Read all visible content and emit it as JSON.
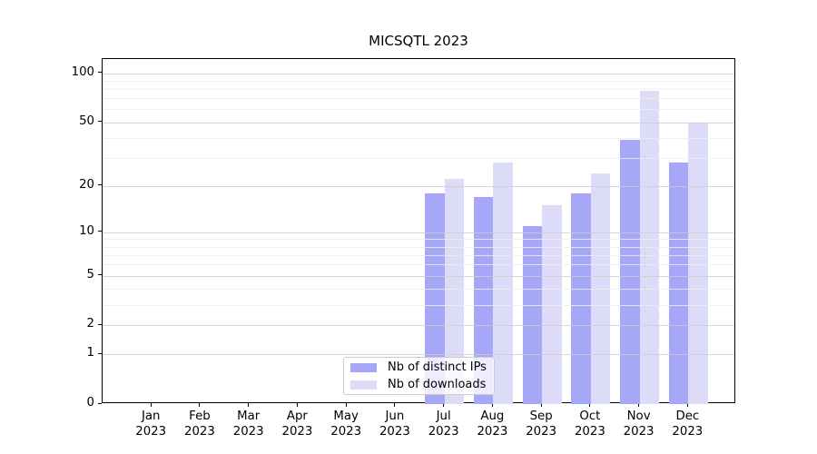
{
  "chart_data": {
    "type": "bar",
    "title": "MICSQTL 2023",
    "months": [
      "Jan",
      "Feb",
      "Mar",
      "Apr",
      "May",
      "Jun",
      "Jul",
      "Aug",
      "Sep",
      "Oct",
      "Nov",
      "Dec"
    ],
    "year": "2023",
    "series": [
      {
        "name": "Nb of distinct IPs",
        "color": "#a7a7f7",
        "values": [
          0,
          0,
          0,
          0,
          0,
          0,
          18,
          17,
          11,
          18,
          39,
          28
        ]
      },
      {
        "name": "Nb of downloads",
        "color": "#dcdcf9",
        "values": [
          0,
          0,
          0,
          0,
          0,
          0,
          22,
          28,
          15,
          24,
          78,
          50
        ]
      }
    ],
    "y_scale": "log10(1+x)",
    "y_ticks": [
      0,
      1,
      2,
      5,
      10,
      20,
      50,
      100
    ],
    "y_minor_gridlines": [
      3,
      4,
      6,
      7,
      8,
      9,
      30,
      40,
      60,
      70,
      80,
      90
    ],
    "ylim": [
      0,
      122
    ],
    "grid": "horizontal-over-bars",
    "legend_position": "lower-center"
  }
}
